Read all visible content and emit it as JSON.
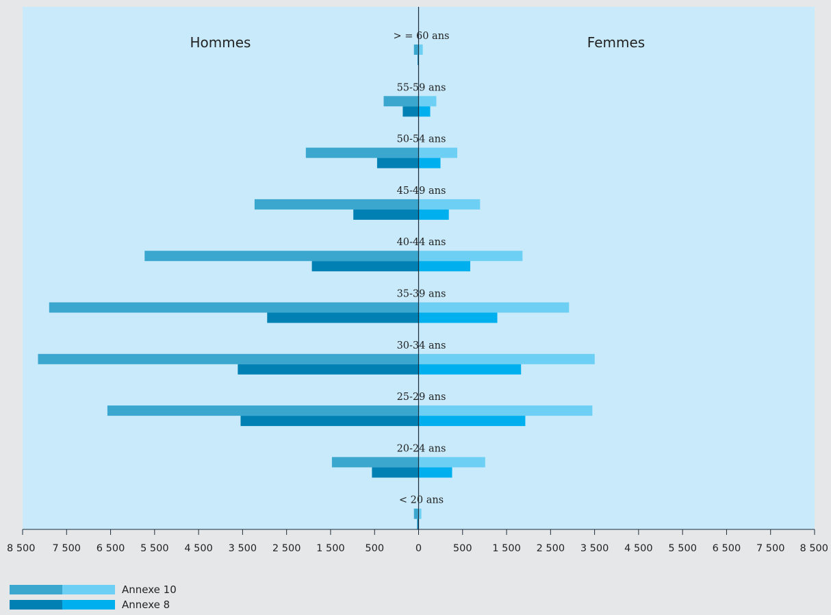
{
  "chart_data": {
    "type": "bar",
    "orientation": "horizontal",
    "layout": "population-pyramid",
    "left_group_label": "Hommes",
    "right_group_label": "Femmes",
    "categories": [
      ">= 60 ans",
      "55-59 ans",
      "50-54 ans",
      "45-49 ans",
      "40-44 ans",
      "35-39 ans",
      "30-34 ans",
      "25-29 ans",
      "20-24 ans",
      "< 20 ans"
    ],
    "category_display": [
      "> = 60 ans",
      "55-59 ans",
      "50-54 ans",
      "45-49 ans",
      "40-44 ans",
      "35-39 ans",
      "30-34 ans",
      "25-29 ans",
      "20-24 ans",
      "< 20 ans"
    ],
    "series": [
      {
        "name": "Annexe 10",
        "side": "Hommes",
        "values": [
          100,
          750,
          2420,
          3520,
          5880,
          7930,
          8170,
          6680,
          1860,
          100
        ]
      },
      {
        "name": "Annexe 8",
        "side": "Hommes",
        "values": [
          20,
          340,
          890,
          1400,
          2290,
          3250,
          3880,
          3820,
          1000,
          30
        ]
      },
      {
        "name": "Annexe 10",
        "side": "Femmes",
        "values": [
          90,
          380,
          830,
          1320,
          2230,
          3230,
          3780,
          3730,
          1430,
          60
        ]
      },
      {
        "name": "Annexe 8",
        "side": "Femmes",
        "values": [
          0,
          250,
          470,
          650,
          1110,
          1690,
          2200,
          2290,
          720,
          0
        ]
      }
    ],
    "x_ticks": [
      "8 500",
      "7 500",
      "6 500",
      "5 500",
      "4 500",
      "3 500",
      "2 500",
      "1 500",
      "500",
      "0",
      "500",
      "1 500",
      "2 500",
      "3 500",
      "4 500",
      "5 500",
      "6 500",
      "7 500",
      "8 500"
    ],
    "xlim": [
      -8500,
      8500
    ],
    "grid": false,
    "legend": {
      "position": "bottom-left",
      "items": [
        {
          "label": "Annexe 10",
          "colors": [
            "#3ba7cf",
            "#6ecff4"
          ]
        },
        {
          "label": "Annexe 8",
          "colors": [
            "#0080b3",
            "#00b0ee"
          ]
        }
      ]
    },
    "colors": {
      "hommes_annexe10": "#3ba7cf",
      "hommes_annexe8": "#0080b3",
      "femmes_annexe10": "#6ecff4",
      "femmes_annexe8": "#00b0ee",
      "plot_background": "#c8eafa",
      "page_background": "#e6e7e8"
    }
  }
}
